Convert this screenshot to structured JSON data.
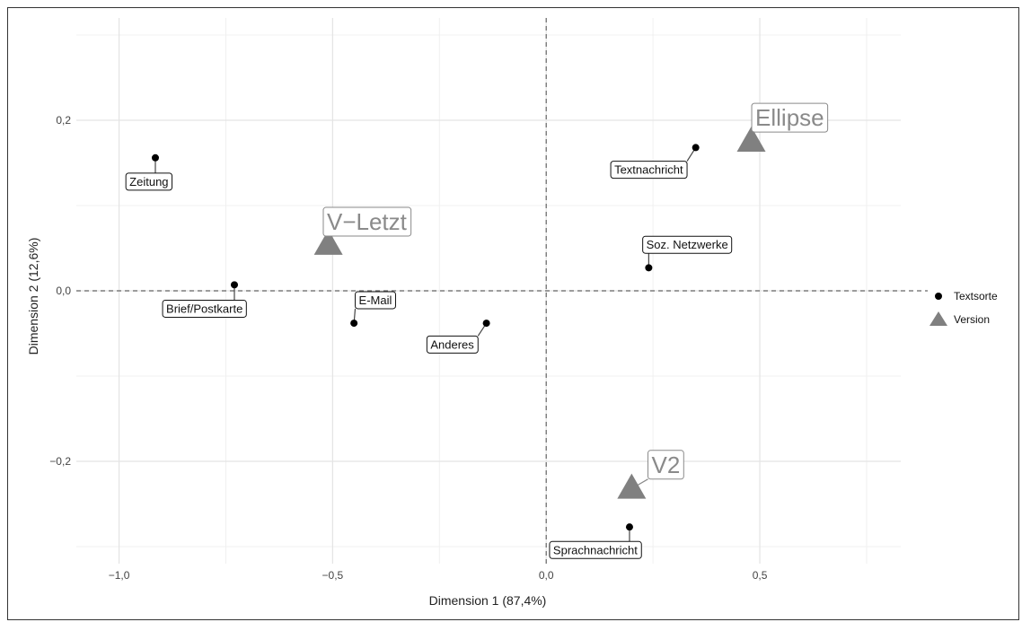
{
  "chart_data": {
    "type": "scatter",
    "xlabel": "Dimension 1 (87,4%)",
    "ylabel": "Dimension 2 (12,6%)",
    "xlim": [
      -1.1,
      0.83
    ],
    "ylim": [
      -0.32,
      0.32
    ],
    "x_ticks": [
      {
        "value": -1.0,
        "label": "−1,0"
      },
      {
        "value": -0.5,
        "label": "−0,5"
      },
      {
        "value": 0.0,
        "label": "0,0"
      },
      {
        "value": 0.5,
        "label": "0,5"
      }
    ],
    "y_ticks": [
      {
        "value": 0.2,
        "label": "0,2"
      },
      {
        "value": 0.0,
        "label": "0,0"
      },
      {
        "value": -0.2,
        "label": "−0,2"
      }
    ],
    "grid": true,
    "zero_lines": "dashed",
    "legend": {
      "placement": "right",
      "items": [
        {
          "name": "Textsorte",
          "shape": "circle",
          "color": "#000000"
        },
        {
          "name": "Version",
          "shape": "triangle",
          "color": "#808080"
        }
      ]
    },
    "series": [
      {
        "name": "Textsorte",
        "shape": "circle",
        "color": "#000000",
        "points": [
          {
            "label": "Zeitung",
            "x": -0.915,
            "y": 0.156,
            "lx": -0.93,
            "ly": 0.128
          },
          {
            "label": "Brief/Postkarte",
            "x": -0.73,
            "y": 0.007,
            "lx": -0.8,
            "ly": -0.021
          },
          {
            "label": "E-Mail",
            "x": -0.45,
            "y": -0.038,
            "lx": -0.4,
            "ly": -0.011
          },
          {
            "label": "Anderes",
            "x": -0.14,
            "y": -0.038,
            "lx": -0.22,
            "ly": -0.063
          },
          {
            "label": "Textnachricht",
            "x": 0.35,
            "y": 0.168,
            "lx": 0.24,
            "ly": 0.142
          },
          {
            "label": "Soz. Netzwerke",
            "x": 0.24,
            "y": 0.027,
            "lx": 0.33,
            "ly": 0.054
          },
          {
            "label": "Sprachnachricht",
            "x": 0.195,
            "y": -0.277,
            "lx": 0.115,
            "ly": -0.304
          }
        ]
      },
      {
        "name": "Version",
        "shape": "triangle",
        "color": "#808080",
        "points": [
          {
            "label": "Ellipse",
            "x": 0.48,
            "y": 0.175,
            "lx": 0.57,
            "ly": 0.203
          },
          {
            "label": "V−Letzt",
            "x": -0.51,
            "y": 0.054,
            "lx": -0.42,
            "ly": 0.081
          },
          {
            "label": "V2",
            "x": 0.2,
            "y": -0.232,
            "lx": 0.28,
            "ly": -0.204
          }
        ]
      }
    ]
  }
}
